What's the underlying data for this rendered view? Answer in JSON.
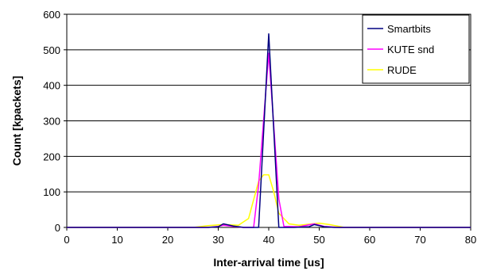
{
  "chart_data": {
    "type": "line",
    "title": "",
    "xlabel": "Inter-arrival time [us]",
    "ylabel": "Count [kpackets]",
    "xlim": [
      0,
      80
    ],
    "ylim": [
      0,
      600
    ],
    "x_ticks": [
      "0",
      "10",
      "20",
      "30",
      "40",
      "50",
      "60",
      "70",
      "80"
    ],
    "y_ticks": [
      "0",
      "100",
      "200",
      "300",
      "400",
      "500",
      "600"
    ],
    "grid": "horizontal",
    "legend_position": "top-right",
    "series": [
      {
        "name": "Smartbits",
        "color": "#000080",
        "points": [
          [
            0,
            0
          ],
          [
            28,
            0
          ],
          [
            30,
            2
          ],
          [
            31,
            10
          ],
          [
            33,
            4
          ],
          [
            35,
            0
          ],
          [
            38,
            0
          ],
          [
            40,
            545
          ],
          [
            42,
            0
          ],
          [
            45,
            0
          ],
          [
            48,
            2
          ],
          [
            49,
            8
          ],
          [
            51,
            2
          ],
          [
            53,
            0
          ],
          [
            80,
            0
          ]
        ]
      },
      {
        "name": "KUTE snd",
        "color": "#ff00ff",
        "points": [
          [
            0,
            0
          ],
          [
            28,
            0
          ],
          [
            30,
            3
          ],
          [
            31,
            6
          ],
          [
            33,
            3
          ],
          [
            35,
            0
          ],
          [
            37,
            0
          ],
          [
            38,
            120
          ],
          [
            40,
            490
          ],
          [
            42,
            80
          ],
          [
            43,
            3
          ],
          [
            46,
            2
          ],
          [
            49,
            10
          ],
          [
            51,
            3
          ],
          [
            54,
            0
          ],
          [
            80,
            0
          ]
        ]
      },
      {
        "name": "RUDE",
        "color": "#ffff00",
        "points": [
          [
            0,
            0
          ],
          [
            25,
            0
          ],
          [
            28,
            5
          ],
          [
            31,
            8
          ],
          [
            34,
            6
          ],
          [
            36,
            25
          ],
          [
            38,
            130
          ],
          [
            39,
            148
          ],
          [
            40,
            148
          ],
          [
            41,
            100
          ],
          [
            42,
            40
          ],
          [
            44,
            10
          ],
          [
            46,
            6
          ],
          [
            50,
            12
          ],
          [
            52,
            8
          ],
          [
            55,
            0
          ],
          [
            80,
            0
          ]
        ]
      }
    ]
  }
}
